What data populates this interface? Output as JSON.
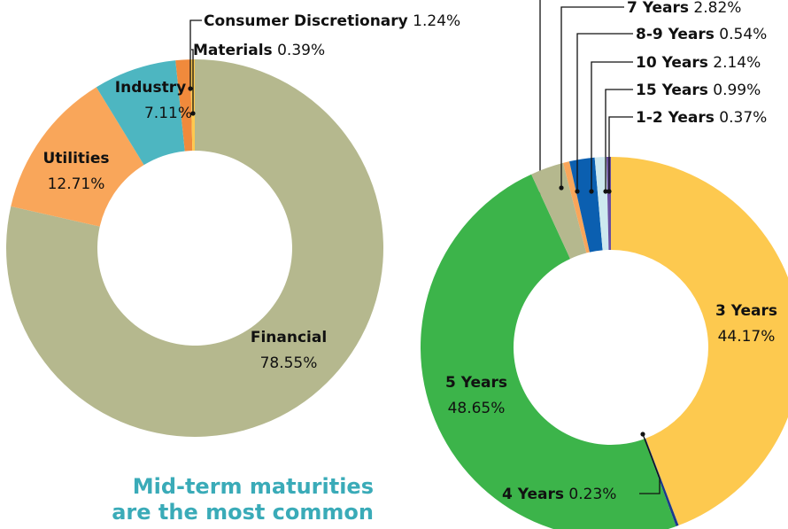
{
  "chart_data": [
    {
      "type": "pie",
      "categories": [
        "Financial",
        "Utilities",
        "Industry",
        "Consumer Discretionary",
        "Materials"
      ],
      "values": [
        78.55,
        12.71,
        7.11,
        1.24,
        0.39
      ],
      "value_labels": [
        "78.55%",
        "12.71%",
        "7.11%",
        "1.24%",
        "0.39%"
      ],
      "colors": [
        "#b5b88e",
        "#f9a65a",
        "#4db6c1",
        "#f08a3c",
        "#fdc94f"
      ]
    },
    {
      "type": "pie",
      "categories": [
        "3 Years",
        "4 Years",
        "5 Years",
        "7 Years",
        "8-9 Years",
        "10 Years",
        "15 Years",
        "1-2 Years"
      ],
      "values": [
        44.17,
        0.23,
        48.65,
        2.82,
        0.54,
        2.14,
        0.99,
        0.37
      ],
      "value_labels": [
        "44.17%",
        "0.23%",
        "48.65%",
        "2.82%",
        "0.54%",
        "2.14%",
        "0.99%",
        "0.37%"
      ],
      "colors": [
        "#fdc94f",
        "#1b3a8c",
        "#3cb44a",
        "#b5b88e",
        "#f9a65a",
        "#0b5fb0",
        "#cde8ef",
        "#6b4fa0"
      ]
    }
  ],
  "caption": [
    "Mid-term maturities",
    "are the most common"
  ]
}
